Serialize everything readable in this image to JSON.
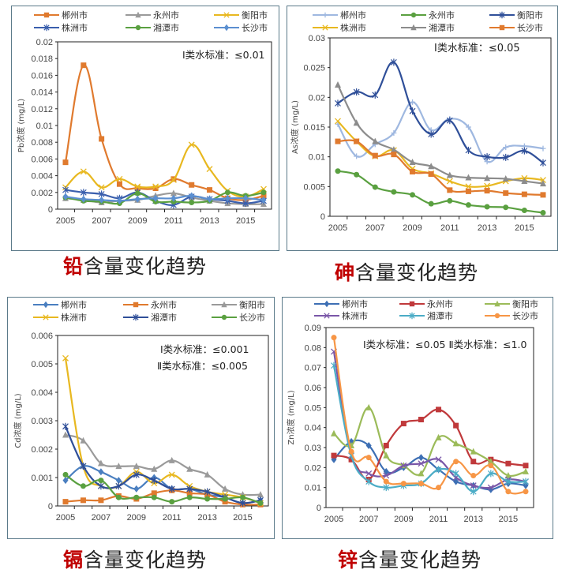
{
  "years": [
    2005,
    2006,
    2007,
    2008,
    2009,
    2010,
    2011,
    2012,
    2013,
    2014,
    2015,
    2016
  ],
  "chart_data": [
    {
      "id": "pb",
      "type": "line",
      "title_metal": "铅",
      "title_rest": "含量变化趋势",
      "ylabel": "Pb浓度 (mg/L)",
      "ylim": [
        0,
        0.02
      ],
      "yticks": [
        "0",
        "0.002",
        "0.004",
        "0.006",
        "0.008",
        "0.01",
        "0.012",
        "0.014",
        "0.016",
        "0.018",
        "0.02"
      ],
      "xticks": [
        "2005",
        "2007",
        "2009",
        "2011",
        "2013",
        "2015"
      ],
      "standards": [
        "Ⅰ类水标准：≤0.01"
      ],
      "legend_position": "top",
      "series": [
        {
          "name": "郴州市",
          "color": "#e07a2e",
          "marker": "square",
          "values": [
            0.0056,
            0.0172,
            0.0084,
            0.003,
            0.0025,
            0.0025,
            0.0036,
            0.0029,
            0.0023,
            0.0013,
            0.0011,
            0.0016
          ]
        },
        {
          "name": "永州市",
          "color": "#9a9a9a",
          "marker": "triangle",
          "values": [
            0.0013,
            0.0011,
            0.0008,
            0.001,
            0.0011,
            0.0016,
            0.0019,
            0.0014,
            0.001,
            0.0007,
            0.0006,
            0.0006
          ]
        },
        {
          "name": "衡阳市",
          "color": "#e8b820",
          "marker": "x",
          "values": [
            0.0026,
            0.0045,
            0.0026,
            0.0036,
            0.0027,
            0.0027,
            0.0035,
            0.0077,
            0.0048,
            0.0022,
            0.0015,
            0.0024
          ]
        },
        {
          "name": "株洲市",
          "color": "#3a5fad",
          "marker": "star",
          "values": [
            0.0023,
            0.002,
            0.0018,
            0.0013,
            0.002,
            0.001,
            0.0005,
            0.0015,
            0.0012,
            0.001,
            0.0007,
            0.001
          ]
        },
        {
          "name": "湘潭市",
          "color": "#5aa040",
          "marker": "circle",
          "values": [
            0.0014,
            0.001,
            0.0009,
            0.0007,
            0.0019,
            0.0009,
            0.0009,
            0.0008,
            0.001,
            0.002,
            0.0016,
            0.002
          ]
        },
        {
          "name": "长沙市",
          "color": "#5b8fd0",
          "marker": "diamond",
          "values": [
            0.0015,
            0.0012,
            0.0011,
            0.001,
            0.0012,
            0.0013,
            0.0013,
            0.0016,
            0.0012,
            0.0013,
            0.0013,
            0.0011
          ]
        }
      ]
    },
    {
      "id": "as",
      "type": "line",
      "title_metal": "砷",
      "title_rest": "含量变化趋势",
      "ylabel": "As浓度 (mg/L)",
      "ylim": [
        0,
        0.03
      ],
      "yticks": [
        "0",
        "0.005",
        "0.01",
        "0.015",
        "0.02",
        "0.025",
        "0.03"
      ],
      "xticks": [
        "2005",
        "2007",
        "2009",
        "2011",
        "2013",
        "2015"
      ],
      "standards": [
        "Ⅰ类水标准：≤0.05"
      ],
      "legend_position": "top",
      "series": [
        {
          "name": "郴州市",
          "color": "#9fb8e0",
          "marker": "plus",
          "values": [
            0.0155,
            0.0101,
            0.0121,
            0.014,
            0.0192,
            0.0145,
            0.0164,
            0.015,
            0.0092,
            0.0116,
            0.0118,
            0.0114
          ]
        },
        {
          "name": "永州市",
          "color": "#5aa040",
          "marker": "circle",
          "values": [
            0.0076,
            0.007,
            0.0049,
            0.0041,
            0.0036,
            0.0021,
            0.0026,
            0.0019,
            0.0016,
            0.0015,
            0.001,
            0.0006
          ]
        },
        {
          "name": "衡阳市",
          "color": "#2f4f99",
          "marker": "star",
          "values": [
            0.019,
            0.0209,
            0.0204,
            0.0259,
            0.0177,
            0.0138,
            0.0161,
            0.0111,
            0.01,
            0.0099,
            0.011,
            0.009
          ]
        },
        {
          "name": "株洲市",
          "color": "#e8b820",
          "marker": "x",
          "values": [
            0.016,
            0.0126,
            0.0101,
            0.0111,
            0.008,
            0.0072,
            0.0059,
            0.005,
            0.0051,
            0.0059,
            0.0064,
            0.0061
          ]
        },
        {
          "name": "湘潭市",
          "color": "#8c8c8c",
          "marker": "triangle",
          "values": [
            0.0221,
            0.0157,
            0.0126,
            0.0112,
            0.0091,
            0.0084,
            0.0069,
            0.0065,
            0.0064,
            0.0063,
            0.0059,
            0.0055
          ]
        },
        {
          "name": "长沙市",
          "color": "#e07a2e",
          "marker": "square",
          "values": [
            0.0126,
            0.0126,
            0.0102,
            0.0104,
            0.0075,
            0.0071,
            0.0044,
            0.0042,
            0.0043,
            0.0039,
            0.0037,
            0.0036
          ]
        }
      ]
    },
    {
      "id": "cd",
      "type": "line",
      "title_metal": "镉",
      "title_rest": "含量变化趋势",
      "ylabel": "Cd浓度 (mg/L)",
      "ylim": [
        0,
        0.006
      ],
      "yticks": [
        "0",
        "0.001",
        "0.002",
        "0.003",
        "0.004",
        "0.005",
        "0.006"
      ],
      "xticks": [
        "2005",
        "2007",
        "2009",
        "2011",
        "2013",
        "2015"
      ],
      "standards": [
        "Ⅰ类水标准：≤0.001",
        "Ⅱ类水标准：≤0.005"
      ],
      "legend_position": "top",
      "series": [
        {
          "name": "郴州市",
          "color": "#4a7fc0",
          "marker": "diamond",
          "values": [
            0.0009,
            0.0014,
            0.0012,
            0.0009,
            0.0006,
            0.001,
            0.0006,
            0.0006,
            0.0004,
            0.0003,
            0.0001,
            0.0002
          ]
        },
        {
          "name": "永州市",
          "color": "#e07a2e",
          "marker": "square",
          "values": [
            0.00015,
            0.0002,
            0.0002,
            0.00035,
            0.00025,
            0.00045,
            0.00055,
            0.00045,
            0.0004,
            0.00015,
            5e-05,
            5e-05
          ]
        },
        {
          "name": "衡阳市",
          "color": "#9a9a9a",
          "marker": "triangle",
          "values": [
            0.0025,
            0.0023,
            0.0015,
            0.0014,
            0.0014,
            0.0013,
            0.0016,
            0.0013,
            0.0011,
            0.0006,
            0.0004,
            0.0004
          ]
        },
        {
          "name": "株洲市",
          "color": "#e8b820",
          "marker": "x",
          "values": [
            0.0052,
            0.0014,
            0.0007,
            0.0007,
            0.0012,
            0.0008,
            0.0011,
            0.0007,
            0.0005,
            0.0004,
            0.0003,
            0.0001
          ]
        },
        {
          "name": "湘潭市",
          "color": "#2f4f99",
          "marker": "star",
          "values": [
            0.0028,
            0.0014,
            0.0007,
            0.0007,
            0.0011,
            0.0009,
            0.0006,
            0.0006,
            0.0005,
            0.0003,
            0.0001,
            0.0002
          ]
        },
        {
          "name": "长沙市",
          "color": "#5aa040",
          "marker": "circle",
          "values": [
            0.0011,
            0.0007,
            0.0009,
            0.0003,
            0.0003,
            0.0003,
            0.00015,
            0.0003,
            0.00025,
            0.00025,
            0.0003,
            0.0001
          ]
        }
      ]
    },
    {
      "id": "zn",
      "type": "line",
      "title_metal": "锌",
      "title_rest": "含量变化趋势",
      "ylabel": "Zn浓度 (mg/L)",
      "ylim": [
        0,
        0.09
      ],
      "yticks": [
        "0",
        "0.01",
        "0.02",
        "0.03",
        "0.04",
        "0.05",
        "0.06",
        "0.07",
        "0.08",
        "0.09"
      ],
      "xticks": [
        "2005",
        "2007",
        "2009",
        "2011",
        "2013",
        "2015"
      ],
      "standards": [
        "Ⅰ类水标准：≤0.05 Ⅱ类水标准：≤1.0"
      ],
      "legend_position": "top",
      "series": [
        {
          "name": "郴州市",
          "color": "#3d6fb4",
          "marker": "diamond",
          "values": [
            0.024,
            0.033,
            0.031,
            0.018,
            0.02,
            0.025,
            0.019,
            0.013,
            0.011,
            0.009,
            0.012,
            0.011
          ]
        },
        {
          "name": "永州市",
          "color": "#c0393b",
          "marker": "square",
          "values": [
            0.026,
            0.024,
            0.014,
            0.031,
            0.042,
            0.044,
            0.049,
            0.041,
            0.023,
            0.024,
            0.022,
            0.021
          ]
        },
        {
          "name": "衡阳市",
          "color": "#9bbb59",
          "marker": "triangle",
          "values": [
            0.037,
            0.031,
            0.05,
            0.026,
            0.021,
            0.017,
            0.035,
            0.032,
            0.028,
            0.023,
            0.016,
            0.018
          ]
        },
        {
          "name": "株洲市",
          "color": "#7a57a8",
          "marker": "x",
          "values": [
            0.078,
            0.026,
            0.017,
            0.016,
            0.021,
            0.022,
            0.024,
            0.015,
            0.011,
            0.01,
            0.014,
            0.013
          ]
        },
        {
          "name": "湘潭市",
          "color": "#4bacc6",
          "marker": "star",
          "values": [
            0.071,
            0.026,
            0.013,
            0.01,
            0.011,
            0.012,
            0.019,
            0.017,
            0.008,
            0.017,
            0.013,
            0.013
          ]
        },
        {
          "name": "长沙市",
          "color": "#f79646",
          "marker": "circle",
          "values": [
            0.085,
            0.028,
            0.025,
            0.013,
            0.012,
            0.012,
            0.01,
            0.023,
            0.016,
            0.021,
            0.008,
            0.008
          ]
        }
      ]
    }
  ]
}
